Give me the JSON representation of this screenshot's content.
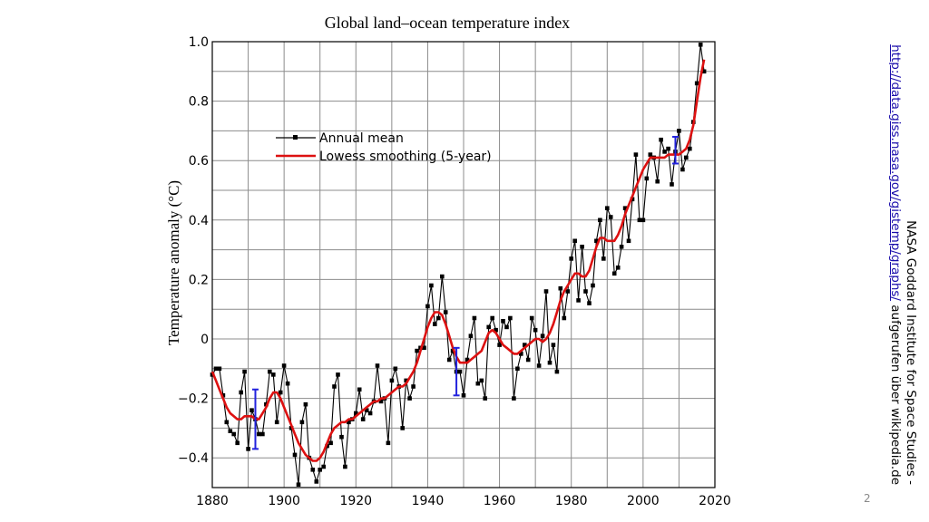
{
  "chart_data": {
    "type": "line",
    "title": "Global land–ocean temperature index",
    "xlabel": "",
    "ylabel": "Temperature anomaly (°C)",
    "xlim": [
      1880,
      2020
    ],
    "ylim": [
      -0.5,
      1.0
    ],
    "xticks": [
      1880,
      1900,
      1920,
      1940,
      1960,
      1980,
      2000,
      2020
    ],
    "yticks": [
      -0.4,
      -0.2,
      0,
      0.2,
      0.4,
      0.6,
      0.8,
      1.0
    ],
    "ytick_labels": [
      "−0.4",
      "−0.2",
      "0",
      "0.2",
      "0.4",
      "0.6",
      "0.8",
      "1.0"
    ],
    "grid": true,
    "legend_position": "top-left",
    "x": [
      1880,
      1881,
      1882,
      1883,
      1884,
      1885,
      1886,
      1887,
      1888,
      1889,
      1890,
      1891,
      1892,
      1893,
      1894,
      1895,
      1896,
      1897,
      1898,
      1899,
      1900,
      1901,
      1902,
      1903,
      1904,
      1905,
      1906,
      1907,
      1908,
      1909,
      1910,
      1911,
      1912,
      1913,
      1914,
      1915,
      1916,
      1917,
      1918,
      1919,
      1920,
      1921,
      1922,
      1923,
      1924,
      1925,
      1926,
      1927,
      1928,
      1929,
      1930,
      1931,
      1932,
      1933,
      1934,
      1935,
      1936,
      1937,
      1938,
      1939,
      1940,
      1941,
      1942,
      1943,
      1944,
      1945,
      1946,
      1947,
      1948,
      1949,
      1950,
      1951,
      1952,
      1953,
      1954,
      1955,
      1956,
      1957,
      1958,
      1959,
      1960,
      1961,
      1962,
      1963,
      1964,
      1965,
      1966,
      1967,
      1968,
      1969,
      1970,
      1971,
      1972,
      1973,
      1974,
      1975,
      1976,
      1977,
      1978,
      1979,
      1980,
      1981,
      1982,
      1983,
      1984,
      1985,
      1986,
      1987,
      1988,
      1989,
      1990,
      1991,
      1992,
      1993,
      1994,
      1995,
      1996,
      1997,
      1998,
      1999,
      2000,
      2001,
      2002,
      2003,
      2004,
      2005,
      2006,
      2007,
      2008,
      2009,
      2010,
      2011,
      2012,
      2013,
      2014,
      2015,
      2016,
      2017
    ],
    "series": [
      {
        "name": "Annual mean",
        "color": "#000000",
        "marker": "square",
        "values": [
          -0.12,
          -0.1,
          -0.1,
          -0.19,
          -0.28,
          -0.31,
          -0.32,
          -0.35,
          -0.18,
          -0.11,
          -0.37,
          -0.24,
          -0.27,
          -0.32,
          -0.32,
          -0.22,
          -0.11,
          -0.12,
          -0.28,
          -0.18,
          -0.09,
          -0.15,
          -0.3,
          -0.39,
          -0.49,
          -0.28,
          -0.22,
          -0.4,
          -0.44,
          -0.48,
          -0.44,
          -0.43,
          -0.36,
          -0.35,
          -0.16,
          -0.12,
          -0.33,
          -0.43,
          -0.28,
          -0.27,
          -0.25,
          -0.17,
          -0.27,
          -0.24,
          -0.25,
          -0.21,
          -0.09,
          -0.21,
          -0.2,
          -0.35,
          -0.14,
          -0.1,
          -0.16,
          -0.3,
          -0.14,
          -0.2,
          -0.16,
          -0.04,
          -0.03,
          -0.03,
          0.11,
          0.18,
          0.05,
          0.07,
          0.21,
          0.09,
          -0.07,
          -0.04,
          -0.11,
          -0.11,
          -0.19,
          -0.07,
          0.01,
          0.07,
          -0.15,
          -0.14,
          -0.2,
          0.04,
          0.07,
          0.03,
          -0.02,
          0.06,
          0.04,
          0.07,
          -0.2,
          -0.1,
          -0.05,
          -0.02,
          -0.07,
          0.07,
          0.03,
          -0.09,
          0.01,
          0.16,
          -0.08,
          -0.02,
          -0.11,
          0.17,
          0.07,
          0.16,
          0.27,
          0.33,
          0.13,
          0.31,
          0.16,
          0.12,
          0.18,
          0.33,
          0.4,
          0.27,
          0.44,
          0.41,
          0.22,
          0.24,
          0.31,
          0.44,
          0.33,
          0.47,
          0.62,
          0.4,
          0.4,
          0.54,
          0.62,
          0.61,
          0.53,
          0.67,
          0.63,
          0.64,
          0.52,
          0.63,
          0.7,
          0.57,
          0.61,
          0.64,
          0.73,
          0.86,
          0.99,
          0.9
        ]
      },
      {
        "name": "Lowess smoothing (5-year)",
        "color": "#dd1111",
        "values": [
          -0.11,
          -0.14,
          -0.17,
          -0.2,
          -0.23,
          -0.25,
          -0.26,
          -0.27,
          -0.27,
          -0.26,
          -0.26,
          -0.26,
          -0.27,
          -0.27,
          -0.25,
          -0.23,
          -0.2,
          -0.18,
          -0.18,
          -0.2,
          -0.23,
          -0.26,
          -0.29,
          -0.32,
          -0.35,
          -0.37,
          -0.39,
          -0.4,
          -0.41,
          -0.41,
          -0.4,
          -0.38,
          -0.35,
          -0.32,
          -0.3,
          -0.29,
          -0.28,
          -0.28,
          -0.27,
          -0.27,
          -0.26,
          -0.25,
          -0.24,
          -0.23,
          -0.22,
          -0.21,
          -0.21,
          -0.2,
          -0.2,
          -0.19,
          -0.18,
          -0.17,
          -0.16,
          -0.16,
          -0.15,
          -0.13,
          -0.11,
          -0.08,
          -0.04,
          0.0,
          0.04,
          0.07,
          0.09,
          0.09,
          0.08,
          0.05,
          0.01,
          -0.03,
          -0.06,
          -0.08,
          -0.08,
          -0.08,
          -0.07,
          -0.06,
          -0.05,
          -0.04,
          -0.01,
          0.02,
          0.03,
          0.02,
          0.0,
          -0.02,
          -0.03,
          -0.04,
          -0.05,
          -0.05,
          -0.04,
          -0.03,
          -0.02,
          -0.01,
          0.0,
          0.0,
          -0.01,
          0.0,
          0.02,
          0.05,
          0.09,
          0.13,
          0.16,
          0.18,
          0.2,
          0.22,
          0.22,
          0.21,
          0.21,
          0.23,
          0.27,
          0.31,
          0.34,
          0.34,
          0.33,
          0.33,
          0.33,
          0.35,
          0.38,
          0.42,
          0.45,
          0.48,
          0.51,
          0.54,
          0.57,
          0.59,
          0.61,
          0.61,
          0.61,
          0.61,
          0.61,
          0.62,
          0.62,
          0.62,
          0.62,
          0.63,
          0.64,
          0.67,
          0.72,
          0.8,
          0.88,
          0.94
        ]
      }
    ],
    "uncertainty_bars": [
      {
        "x": 1892,
        "low": -0.37,
        "high": -0.17,
        "color": "#2222dd"
      },
      {
        "x": 1948,
        "low": -0.19,
        "high": -0.03,
        "color": "#2222dd"
      },
      {
        "x": 2009,
        "low": 0.59,
        "high": 0.68,
        "color": "#2222dd"
      }
    ]
  },
  "credit": {
    "line1": "NASA Goddard Institute for Space Studies -",
    "link": "http://data.giss.nasa.gov/gistemp/graphs/",
    "suffix": " aufgerufen über wikipedia.de"
  },
  "page_number": "2"
}
